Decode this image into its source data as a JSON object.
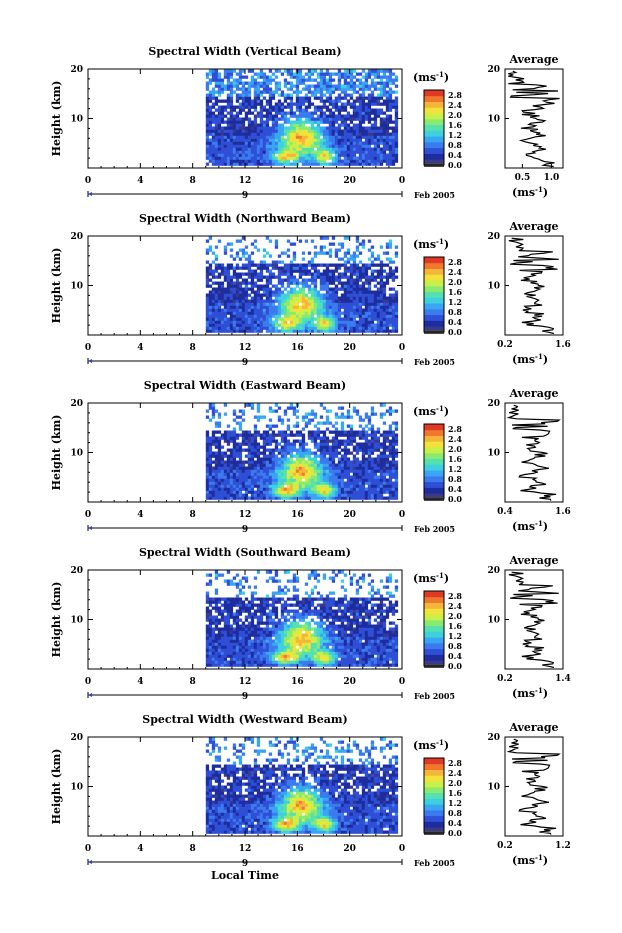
{
  "colors": {
    "scale": [
      "#ffffff",
      "#3a3a8c",
      "#1e2d9e",
      "#2f4fd6",
      "#3b7bee",
      "#38a6f2",
      "#3fd0e0",
      "#55e0b0",
      "#8aea70",
      "#c8ef4a",
      "#f2e23a",
      "#f5b43a",
      "#f0782e",
      "#e03a26"
    ]
  },
  "shared": {
    "ylabel": "Height (km)",
    "ytick_main": [
      "20",
      "10"
    ],
    "xticks": [
      "0",
      "4",
      "8",
      "12",
      "16",
      "20",
      "0"
    ],
    "date_mark": "9",
    "date_label": "Feb 2005",
    "colorbar_title": "(ms",
    "colorbar_title_sup": "-1",
    "colorbar_title_close": ")",
    "colorbar_ticks": [
      "2.8",
      "2.4",
      "2.0",
      "1.6",
      "1.2",
      "0.8",
      "0.4",
      "0.0"
    ],
    "avg_title": "Average",
    "avg_ylabel_ticks": [
      "20",
      "10"
    ],
    "avg_unit": "(ms",
    "avg_unit_sup": "-1",
    "avg_unit_close": ")",
    "xlabel_bottom": "Local Time"
  },
  "chart_data": [
    {
      "type": "heatmap",
      "title": "Spectral Width (Vertical Beam)",
      "ylim": [
        0,
        20
      ],
      "xlim": [
        0,
        24
      ],
      "data_start_hour": 9,
      "data_end_hour": 23.5,
      "avg": {
        "xticks": [
          "0.5",
          "1.0"
        ],
        "xlim": [
          0.2,
          1.2
        ]
      }
    },
    {
      "type": "heatmap",
      "title": "Spectral Width (Northward Beam)",
      "ylim": [
        0,
        20
      ],
      "xlim": [
        0,
        24
      ],
      "data_start_hour": 9,
      "data_end_hour": 23.5,
      "avg": {
        "xticks": [
          "0.2",
          "1.6"
        ],
        "xlim": [
          0.2,
          1.6
        ]
      }
    },
    {
      "type": "heatmap",
      "title": "Spectral Width (Eastward Beam)",
      "ylim": [
        0,
        20
      ],
      "xlim": [
        0,
        24
      ],
      "data_start_hour": 9,
      "data_end_hour": 23.5,
      "avg": {
        "xticks": [
          "0.4",
          "1.6"
        ],
        "xlim": [
          0.4,
          1.6
        ]
      }
    },
    {
      "type": "heatmap",
      "title": "Spectral Width (Southward Beam)",
      "ylim": [
        0,
        20
      ],
      "xlim": [
        0,
        24
      ],
      "data_start_hour": 9,
      "data_end_hour": 23.5,
      "avg": {
        "xticks": [
          "0.2",
          "1.4"
        ],
        "xlim": [
          0.2,
          1.4
        ]
      }
    },
    {
      "type": "heatmap",
      "title": "Spectral Width (Westward Beam)",
      "ylim": [
        0,
        20
      ],
      "xlim": [
        0,
        24
      ],
      "data_start_hour": 9,
      "data_end_hour": 23.5,
      "avg": {
        "xticks": [
          "0.2",
          "1.2"
        ],
        "xlim": [
          0.2,
          1.2
        ]
      }
    }
  ]
}
